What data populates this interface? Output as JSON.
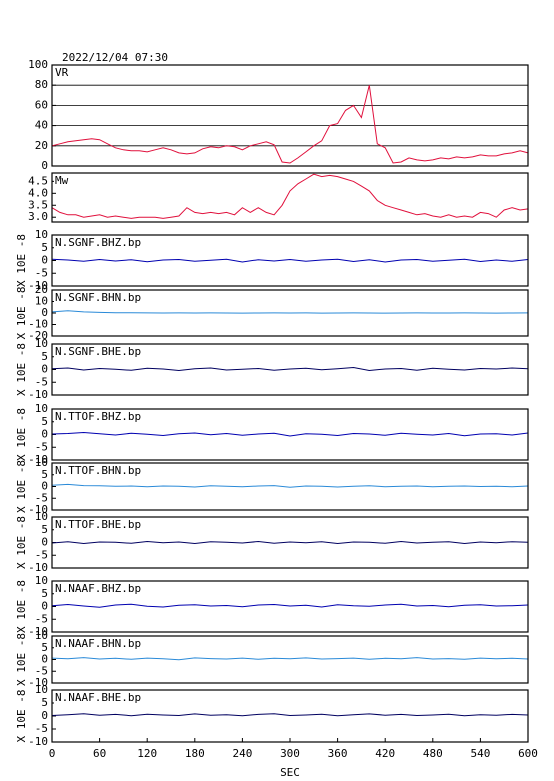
{
  "chart_data": [
    {
      "type": "line",
      "title": "2022/12/04 07:30",
      "label": "VR",
      "color": "#e0103c",
      "grid": true,
      "xlim": [
        0,
        600
      ],
      "ylim": [
        0,
        100
      ],
      "yticks": [
        0,
        20,
        40,
        60,
        80,
        100
      ],
      "x": [
        0,
        10,
        20,
        30,
        40,
        50,
        60,
        70,
        80,
        90,
        100,
        110,
        120,
        130,
        140,
        150,
        160,
        170,
        180,
        190,
        200,
        210,
        220,
        230,
        240,
        250,
        260,
        270,
        280,
        290,
        300,
        310,
        320,
        330,
        340,
        350,
        360,
        370,
        380,
        390,
        400,
        410,
        420,
        430,
        440,
        450,
        460,
        470,
        480,
        490,
        500,
        510,
        520,
        530,
        540,
        550,
        560,
        570,
        580,
        590,
        600
      ],
      "values": [
        20,
        22,
        24,
        25,
        26,
        27,
        26,
        22,
        18,
        16,
        15,
        15,
        14,
        16,
        18,
        16,
        13,
        12,
        13,
        17,
        19,
        18,
        20,
        19,
        16,
        20,
        22,
        24,
        21,
        4,
        3,
        8,
        14,
        20,
        25,
        40,
        42,
        55,
        60,
        48,
        80,
        22,
        18,
        3,
        4,
        8,
        6,
        5,
        6,
        8,
        7,
        9,
        8,
        9,
        11,
        10,
        10,
        12,
        13,
        15,
        13
      ]
    },
    {
      "type": "line",
      "label": "Mw",
      "color": "#e0103c",
      "grid": false,
      "xlim": [
        0,
        600
      ],
      "ylim": [
        2.8,
        4.85
      ],
      "yticks": [
        {
          "value": 3,
          "label": "3.0"
        },
        3.5,
        {
          "value": 4,
          "label": "4.0"
        },
        4.5
      ],
      "x": [
        0,
        10,
        20,
        30,
        40,
        50,
        60,
        70,
        80,
        90,
        100,
        110,
        120,
        130,
        140,
        150,
        160,
        170,
        180,
        190,
        200,
        210,
        220,
        230,
        240,
        250,
        260,
        270,
        280,
        290,
        300,
        310,
        320,
        330,
        340,
        350,
        360,
        370,
        380,
        390,
        400,
        410,
        420,
        430,
        440,
        450,
        460,
        470,
        480,
        490,
        500,
        510,
        520,
        530,
        540,
        550,
        560,
        570,
        580,
        590,
        600
      ],
      "values": [
        3.4,
        3.2,
        3.1,
        3.1,
        3.0,
        3.05,
        3.1,
        3.0,
        3.05,
        3.0,
        2.95,
        3.0,
        3.0,
        3.0,
        2.95,
        3.0,
        3.05,
        3.4,
        3.2,
        3.15,
        3.2,
        3.15,
        3.2,
        3.1,
        3.4,
        3.2,
        3.4,
        3.2,
        3.1,
        3.5,
        4.1,
        4.4,
        4.6,
        4.8,
        4.7,
        4.75,
        4.7,
        4.6,
        4.5,
        4.3,
        4.1,
        3.7,
        3.5,
        3.4,
        3.3,
        3.2,
        3.1,
        3.15,
        3.05,
        3.0,
        3.1,
        3.0,
        3.05,
        3.0,
        3.2,
        3.15,
        3.0,
        3.3,
        3.4,
        3.3,
        3.35
      ]
    },
    {
      "type": "line",
      "label": "N.SGNF.BHZ.bp",
      "ylabel": "X 10E -8",
      "color": "#0000b0",
      "xlim": [
        0,
        600
      ],
      "ylim": [
        -10,
        10
      ],
      "yticks": [
        -10,
        -5,
        0,
        5,
        10
      ],
      "x": [
        0,
        20,
        40,
        60,
        80,
        100,
        120,
        140,
        160,
        180,
        200,
        220,
        240,
        260,
        280,
        300,
        320,
        340,
        360,
        380,
        400,
        420,
        440,
        460,
        480,
        500,
        520,
        540,
        560,
        580,
        600
      ],
      "values": [
        0.5,
        0.2,
        -0.3,
        0.4,
        -0.2,
        0.3,
        -0.5,
        0.2,
        0.4,
        -0.3,
        0.1,
        0.5,
        -0.6,
        0.3,
        -0.2,
        0.4,
        -0.3,
        0.2,
        0.5,
        -0.4,
        0.3,
        -0.6,
        0.2,
        0.4,
        -0.3,
        0.1,
        0.5,
        -0.4,
        0.2,
        -0.3,
        0.4
      ]
    },
    {
      "type": "line",
      "label": "N.SGNF.BHN.bp",
      "ylabel": "X 10E -8",
      "color": "#2a8ad8",
      "xlim": [
        0,
        600
      ],
      "ylim": [
        -20,
        20
      ],
      "yticks": [
        -20,
        -10,
        0,
        10,
        20
      ],
      "x": [
        0,
        20,
        40,
        60,
        80,
        100,
        120,
        140,
        160,
        180,
        200,
        220,
        240,
        260,
        280,
        300,
        320,
        340,
        360,
        380,
        400,
        420,
        440,
        460,
        480,
        500,
        520,
        540,
        560,
        580,
        600
      ],
      "values": [
        1,
        2,
        1,
        0.5,
        0.3,
        0.2,
        0.1,
        0,
        0.1,
        0,
        0.1,
        0,
        -0.1,
        0,
        0.1,
        0,
        0.1,
        -0.1,
        0,
        0.1,
        0,
        -0.1,
        0,
        0.1,
        0,
        0,
        0.1,
        0,
        -0.1,
        0,
        0.1
      ]
    },
    {
      "type": "line",
      "label": "N.SGNF.BHE.bp",
      "ylabel": "X 10E -8",
      "color": "#000060",
      "xlim": [
        0,
        600
      ],
      "ylim": [
        -10,
        10
      ],
      "yticks": [
        -10,
        -5,
        0,
        5,
        10
      ],
      "x": [
        0,
        20,
        40,
        60,
        80,
        100,
        120,
        140,
        160,
        180,
        200,
        220,
        240,
        260,
        280,
        300,
        320,
        340,
        360,
        380,
        400,
        420,
        440,
        460,
        480,
        500,
        520,
        540,
        560,
        580,
        600
      ],
      "values": [
        0.3,
        0.6,
        -0.2,
        0.4,
        0.1,
        -0.3,
        0.5,
        0.2,
        -0.4,
        0.3,
        0.6,
        -0.2,
        0.1,
        0.4,
        -0.3,
        0.2,
        0.5,
        -0.1,
        0.3,
        0.8,
        -0.4,
        0.2,
        0.4,
        -0.3,
        0.5,
        0.1,
        -0.2,
        0.4,
        0.2,
        0.6,
        0.3
      ]
    },
    {
      "type": "line",
      "label": "N.TTOF.BHZ.bp",
      "ylabel": "X 10E -8",
      "color": "#0000b0",
      "xlim": [
        0,
        600
      ],
      "ylim": [
        -10,
        10
      ],
      "yticks": [
        -10,
        -5,
        0,
        5,
        10
      ],
      "x": [
        0,
        20,
        40,
        60,
        80,
        100,
        120,
        140,
        160,
        180,
        200,
        220,
        240,
        260,
        280,
        300,
        320,
        340,
        360,
        380,
        400,
        420,
        440,
        460,
        480,
        500,
        520,
        540,
        560,
        580,
        600
      ],
      "values": [
        0.2,
        0.4,
        0.8,
        0.3,
        -0.2,
        0.5,
        0.1,
        -0.4,
        0.3,
        0.6,
        -0.1,
        0.4,
        -0.3,
        0.2,
        0.5,
        -0.6,
        0.3,
        0.1,
        -0.4,
        0.4,
        0.2,
        -0.3,
        0.5,
        0.1,
        -0.2,
        0.4,
        -0.5,
        0.2,
        0.3,
        -0.2,
        0.6
      ]
    },
    {
      "type": "line",
      "label": "N.TTOF.BHN.bp",
      "ylabel": "X 10E -8",
      "color": "#2a8ad8",
      "xlim": [
        0,
        600
      ],
      "ylim": [
        -10,
        10
      ],
      "yticks": [
        -10,
        -5,
        0,
        5,
        10
      ],
      "x": [
        0,
        20,
        40,
        60,
        80,
        100,
        120,
        140,
        160,
        180,
        200,
        220,
        240,
        260,
        280,
        300,
        320,
        340,
        360,
        380,
        400,
        420,
        440,
        460,
        480,
        500,
        520,
        540,
        560,
        580,
        600
      ],
      "values": [
        0.5,
        0.9,
        0.4,
        0.3,
        0.1,
        0.2,
        -0.1,
        0.2,
        0.1,
        -0.2,
        0.3,
        0.1,
        -0.1,
        0.2,
        0.4,
        -0.3,
        0.2,
        0.1,
        -0.2,
        0.1,
        0.3,
        -0.1,
        0.1,
        0.2,
        -0.1,
        0.1,
        0.2,
        0,
        0.1,
        -0.1,
        0.2
      ]
    },
    {
      "type": "line",
      "label": "N.TTOF.BHE.bp",
      "ylabel": "X 10E -8",
      "color": "#000060",
      "xlim": [
        0,
        600
      ],
      "ylim": [
        -10,
        10
      ],
      "yticks": [
        -10,
        -5,
        0,
        5,
        10
      ],
      "x": [
        0,
        20,
        40,
        60,
        80,
        100,
        120,
        140,
        160,
        180,
        200,
        220,
        240,
        260,
        280,
        300,
        320,
        340,
        360,
        380,
        400,
        420,
        440,
        460,
        480,
        500,
        520,
        540,
        560,
        580,
        600
      ],
      "values": [
        -0.2,
        0.3,
        -0.4,
        0.2,
        0.1,
        -0.3,
        0.4,
        -0.1,
        0.2,
        -0.4,
        0.3,
        0.1,
        -0.2,
        0.4,
        -0.3,
        0.2,
        -0.1,
        0.3,
        -0.4,
        0.2,
        0.1,
        -0.3,
        0.4,
        -0.2,
        0.1,
        0.3,
        -0.4,
        0.2,
        -0.1,
        0.3,
        0.1
      ]
    },
    {
      "type": "line",
      "label": "N.NAAF.BHZ.bp",
      "ylabel": "X 10E -8",
      "color": "#0000b0",
      "xlim": [
        0,
        600
      ],
      "ylim": [
        -10,
        10
      ],
      "yticks": [
        -10,
        -5,
        0,
        5,
        10
      ],
      "x": [
        0,
        20,
        40,
        60,
        80,
        100,
        120,
        140,
        160,
        180,
        200,
        220,
        240,
        260,
        280,
        300,
        320,
        340,
        360,
        380,
        400,
        420,
        440,
        460,
        480,
        500,
        520,
        540,
        560,
        580,
        600
      ],
      "values": [
        0.3,
        0.8,
        0.2,
        -0.3,
        0.6,
        0.9,
        0.1,
        -0.2,
        0.5,
        0.7,
        0.2,
        0.4,
        -0.1,
        0.6,
        0.8,
        0.2,
        0.5,
        -0.2,
        0.7,
        0.3,
        0.1,
        0.6,
        0.9,
        0.2,
        0.4,
        -0.1,
        0.5,
        0.7,
        0.2,
        0.3,
        0.6
      ]
    },
    {
      "type": "line",
      "label": "N.NAAF.BHN.bp",
      "ylabel": "X 10E -8",
      "color": "#2a8ad8",
      "xlim": [
        0,
        600
      ],
      "ylim": [
        -10,
        10
      ],
      "yticks": [
        -10,
        -5,
        0,
        5,
        10
      ],
      "x": [
        0,
        20,
        40,
        60,
        80,
        100,
        120,
        140,
        160,
        180,
        200,
        220,
        240,
        260,
        280,
        300,
        320,
        340,
        360,
        380,
        400,
        420,
        440,
        460,
        480,
        500,
        520,
        540,
        560,
        580,
        600
      ],
      "values": [
        0.6,
        0.3,
        0.8,
        0.2,
        0.5,
        0.1,
        0.6,
        0.3,
        -0.1,
        0.7,
        0.4,
        0.2,
        0.6,
        0.1,
        0.5,
        0.3,
        0.7,
        0.2,
        0.4,
        0.6,
        0.1,
        0.5,
        0.3,
        0.8,
        0.2,
        0.4,
        0.1,
        0.6,
        0.3,
        0.5,
        0.2
      ]
    },
    {
      "type": "line",
      "label": "N.NAAF.BHE.bp",
      "ylabel": "X 10E -8",
      "color": "#000060",
      "xlabel": "SEC",
      "xlim": [
        0,
        600
      ],
      "ylim": [
        -10,
        10
      ],
      "yticks": [
        -10,
        -5,
        0,
        5,
        10
      ],
      "xticks": [
        0,
        60,
        120,
        180,
        240,
        300,
        360,
        420,
        480,
        540,
        600
      ],
      "x": [
        0,
        20,
        40,
        60,
        80,
        100,
        120,
        140,
        160,
        180,
        200,
        220,
        240,
        260,
        280,
        300,
        320,
        340,
        360,
        380,
        400,
        420,
        440,
        460,
        480,
        500,
        520,
        540,
        560,
        580,
        600
      ],
      "values": [
        0.2,
        0.5,
        0.9,
        0.3,
        0.6,
        0.1,
        0.7,
        0.4,
        0.2,
        0.8,
        0.3,
        0.5,
        0.1,
        0.6,
        0.9,
        0.2,
        0.4,
        0.7,
        0.1,
        0.5,
        0.8,
        0.3,
        0.6,
        0.2,
        0.4,
        0.7,
        0.1,
        0.5,
        0.3,
        0.6,
        0.4
      ]
    }
  ]
}
